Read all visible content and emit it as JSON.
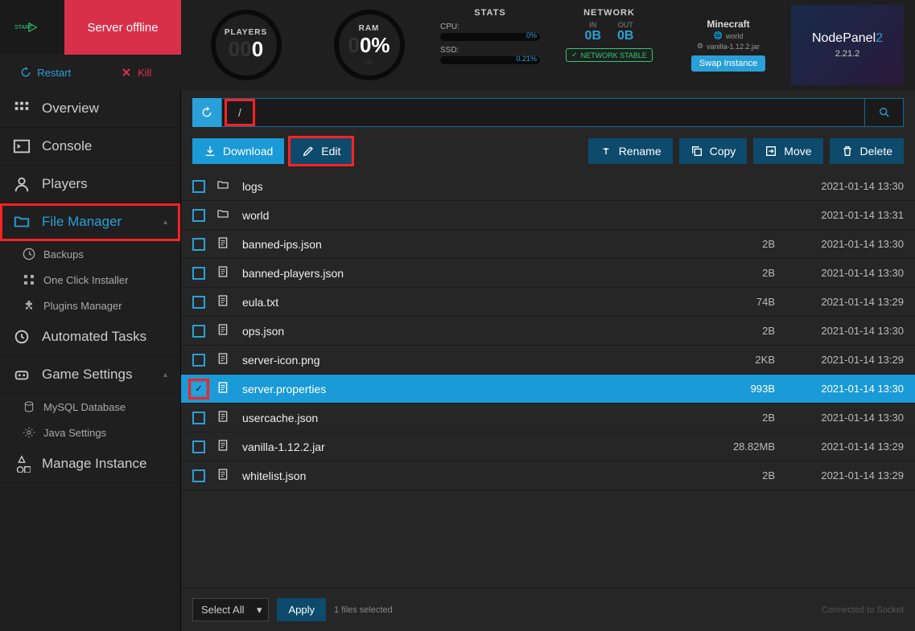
{
  "header": {
    "server_status": "Server offline",
    "restart": "Restart",
    "kill": "Kill",
    "players": {
      "label": "PLAYERS",
      "value": "0"
    },
    "ram": {
      "label": "RAM",
      "value": "0%"
    },
    "stats": {
      "title": "STATS",
      "cpu_label": "CPU:",
      "cpu_val": "0%",
      "ssd_label": "SSD:",
      "ssd_val": "0.21%"
    },
    "network": {
      "title": "NETWORK",
      "in_label": "IN",
      "in_val": "0B",
      "out_label": "OUT",
      "out_val": "0B",
      "stable": "NETWORK STABLE"
    },
    "minecraft": {
      "title": "Minecraft",
      "world": "world",
      "jar": "vanilla-1.12.2.jar",
      "swap": "Swap Instance"
    },
    "nodepanel": {
      "title_a": "Node",
      "title_b": "Panel",
      "title_c": "2",
      "version": "2.21.2"
    }
  },
  "sidebar": {
    "overview": "Overview",
    "console": "Console",
    "players": "Players",
    "file_manager": "File Manager",
    "backups": "Backups",
    "one_click": "One Click Installer",
    "plugins": "Plugins Manager",
    "automated": "Automated Tasks",
    "game_settings": "Game Settings",
    "mysql": "MySQL Database",
    "java": "Java Settings",
    "manage_instance": "Manage Instance"
  },
  "path": {
    "current": "/"
  },
  "actions": {
    "download": "Download",
    "edit": "Edit",
    "rename": "Rename",
    "copy": "Copy",
    "move": "Move",
    "delete": "Delete"
  },
  "files": [
    {
      "name": "logs",
      "type": "folder",
      "size": "",
      "date": "2021-01-14 13:30",
      "selected": false
    },
    {
      "name": "world",
      "type": "folder",
      "size": "",
      "date": "2021-01-14 13:31",
      "selected": false
    },
    {
      "name": "banned-ips.json",
      "type": "file",
      "size": "2B",
      "date": "2021-01-14 13:30",
      "selected": false
    },
    {
      "name": "banned-players.json",
      "type": "file",
      "size": "2B",
      "date": "2021-01-14 13:30",
      "selected": false
    },
    {
      "name": "eula.txt",
      "type": "file",
      "size": "74B",
      "date": "2021-01-14 13:29",
      "selected": false
    },
    {
      "name": "ops.json",
      "type": "file",
      "size": "2B",
      "date": "2021-01-14 13:30",
      "selected": false
    },
    {
      "name": "server-icon.png",
      "type": "file",
      "size": "2KB",
      "date": "2021-01-14 13:29",
      "selected": false
    },
    {
      "name": "server.properties",
      "type": "file",
      "size": "993B",
      "date": "2021-01-14 13:30",
      "selected": true
    },
    {
      "name": "usercache.json",
      "type": "file",
      "size": "2B",
      "date": "2021-01-14 13:30",
      "selected": false
    },
    {
      "name": "vanilla-1.12.2.jar",
      "type": "file",
      "size": "28.82MB",
      "date": "2021-01-14 13:29",
      "selected": false
    },
    {
      "name": "whitelist.json",
      "type": "file",
      "size": "2B",
      "date": "2021-01-14 13:29",
      "selected": false
    }
  ],
  "footer": {
    "select_all": "Select All",
    "apply": "Apply",
    "files_selected": "1 files selected",
    "socket": "Connected to Socket"
  },
  "highlights": {
    "file_manager_nav": true,
    "path_slash": true,
    "edit_button": true,
    "server_properties_check": true
  },
  "colors": {
    "accent": "#2aa0d8",
    "danger": "#d9304a",
    "highlight": "#ff2222",
    "bg_dark": "#1a1a1a",
    "bg_panel": "#262626"
  }
}
